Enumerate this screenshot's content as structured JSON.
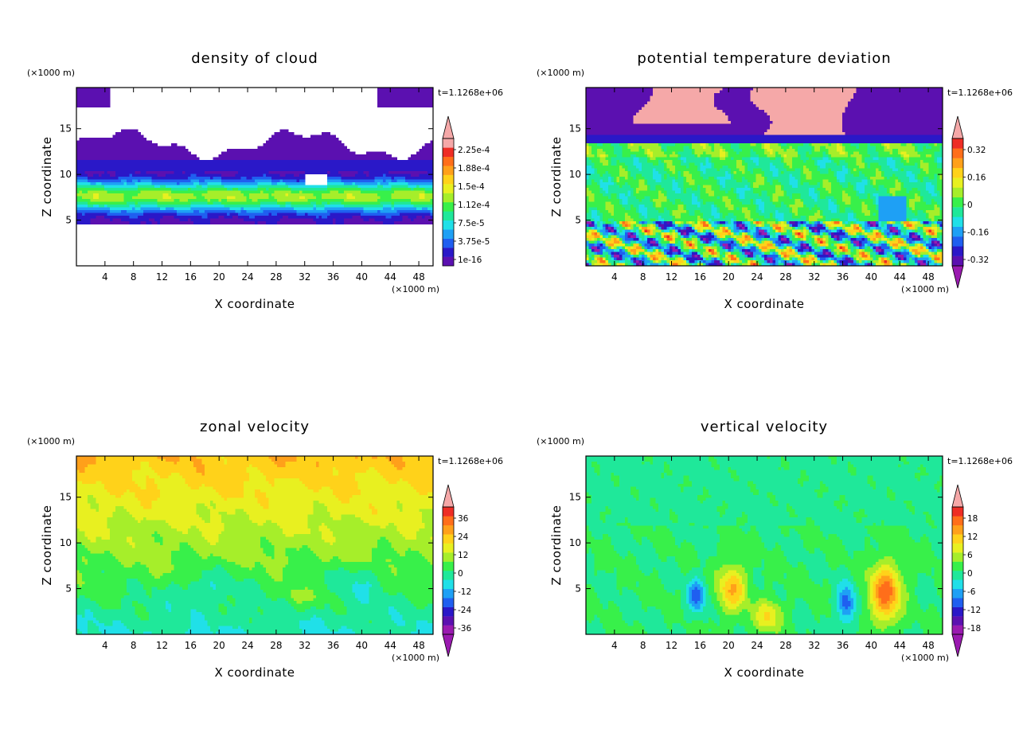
{
  "chart_data": [
    {
      "type": "heatmap",
      "title": "density of cloud",
      "xlabel": "X coordinate",
      "ylabel": "Z coordinate",
      "x_unit": "(×1000 m)",
      "y_unit": "(×1000 m)",
      "time_label": "t=1.1268e+06",
      "xlim": [
        0,
        50
      ],
      "ylim": [
        0,
        19.5
      ],
      "x_ticks": [
        "4",
        "8",
        "12",
        "16",
        "20",
        "24",
        "28",
        "32",
        "36",
        "40",
        "44",
        "48"
      ],
      "y_ticks": [
        "5",
        "10",
        "15"
      ],
      "colorbar_labels": [
        "1e-16",
        "3.75e-5",
        "7.5e-5",
        "1.12e-4",
        "1.5e-4",
        "1.88e-4",
        "2.25e-4"
      ],
      "colorbar_arrows": "top",
      "field_description": "cloud layer between about z = 5 and z = 15, densest band near z = 7-8"
    },
    {
      "type": "heatmap",
      "title": "potential temperature deviation",
      "xlabel": "X coordinate",
      "ylabel": "Z coordinate",
      "x_unit": "(×1000 m)",
      "y_unit": "(×1000 m)",
      "time_label": "t=1.1268e+06",
      "xlim": [
        0,
        50
      ],
      "ylim": [
        0,
        19.5
      ],
      "x_ticks": [
        "4",
        "8",
        "12",
        "16",
        "20",
        "24",
        "28",
        "32",
        "36",
        "40",
        "44",
        "48"
      ],
      "y_ticks": [
        "5",
        "10",
        "15"
      ],
      "colorbar_labels": [
        "-0.32",
        "-0.16",
        "0",
        "0.16",
        "0.32"
      ],
      "colorbar_arrows": "both"
    },
    {
      "type": "heatmap",
      "title": "zonal velocity",
      "xlabel": "X coordinate",
      "ylabel": "Z coordinate",
      "x_unit": "(×1000 m)",
      "y_unit": "(×1000 m)",
      "time_label": "t=1.1268e+06",
      "xlim": [
        0,
        50
      ],
      "ylim": [
        0,
        19.5
      ],
      "x_ticks": [
        "4",
        "8",
        "12",
        "16",
        "20",
        "24",
        "28",
        "32",
        "36",
        "40",
        "44",
        "48"
      ],
      "y_ticks": [
        "5",
        "10",
        "15"
      ],
      "colorbar_labels": [
        "-36",
        "-24",
        "-12",
        "0",
        "12",
        "24",
        "36"
      ],
      "colorbar_arrows": "both"
    },
    {
      "type": "heatmap",
      "title": "vertical velocity",
      "xlabel": "X coordinate",
      "ylabel": "Z coordinate",
      "x_unit": "(×1000 m)",
      "y_unit": "(×1000 m)",
      "time_label": "t=1.1268e+06",
      "xlim": [
        0,
        50
      ],
      "ylim": [
        0,
        19.5
      ],
      "x_ticks": [
        "4",
        "8",
        "12",
        "16",
        "20",
        "24",
        "28",
        "32",
        "36",
        "40",
        "44",
        "48"
      ],
      "y_ticks": [
        "5",
        "10",
        "15"
      ],
      "colorbar_labels": [
        "-18",
        "-12",
        "-6",
        "0",
        "6",
        "12",
        "18"
      ],
      "colorbar_arrows": "both"
    }
  ],
  "colors": {
    "contour_scale": [
      "#9a1ab0",
      "#5b10b0",
      "#2a18c8",
      "#1f5ff0",
      "#1ea0f5",
      "#20e0e8",
      "#1fe89a",
      "#38f04a",
      "#a6ee2a",
      "#e8f020",
      "#ffd21a",
      "#ffa01a",
      "#ff6e1a",
      "#ee2d25",
      "#f5a8a8"
    ]
  }
}
